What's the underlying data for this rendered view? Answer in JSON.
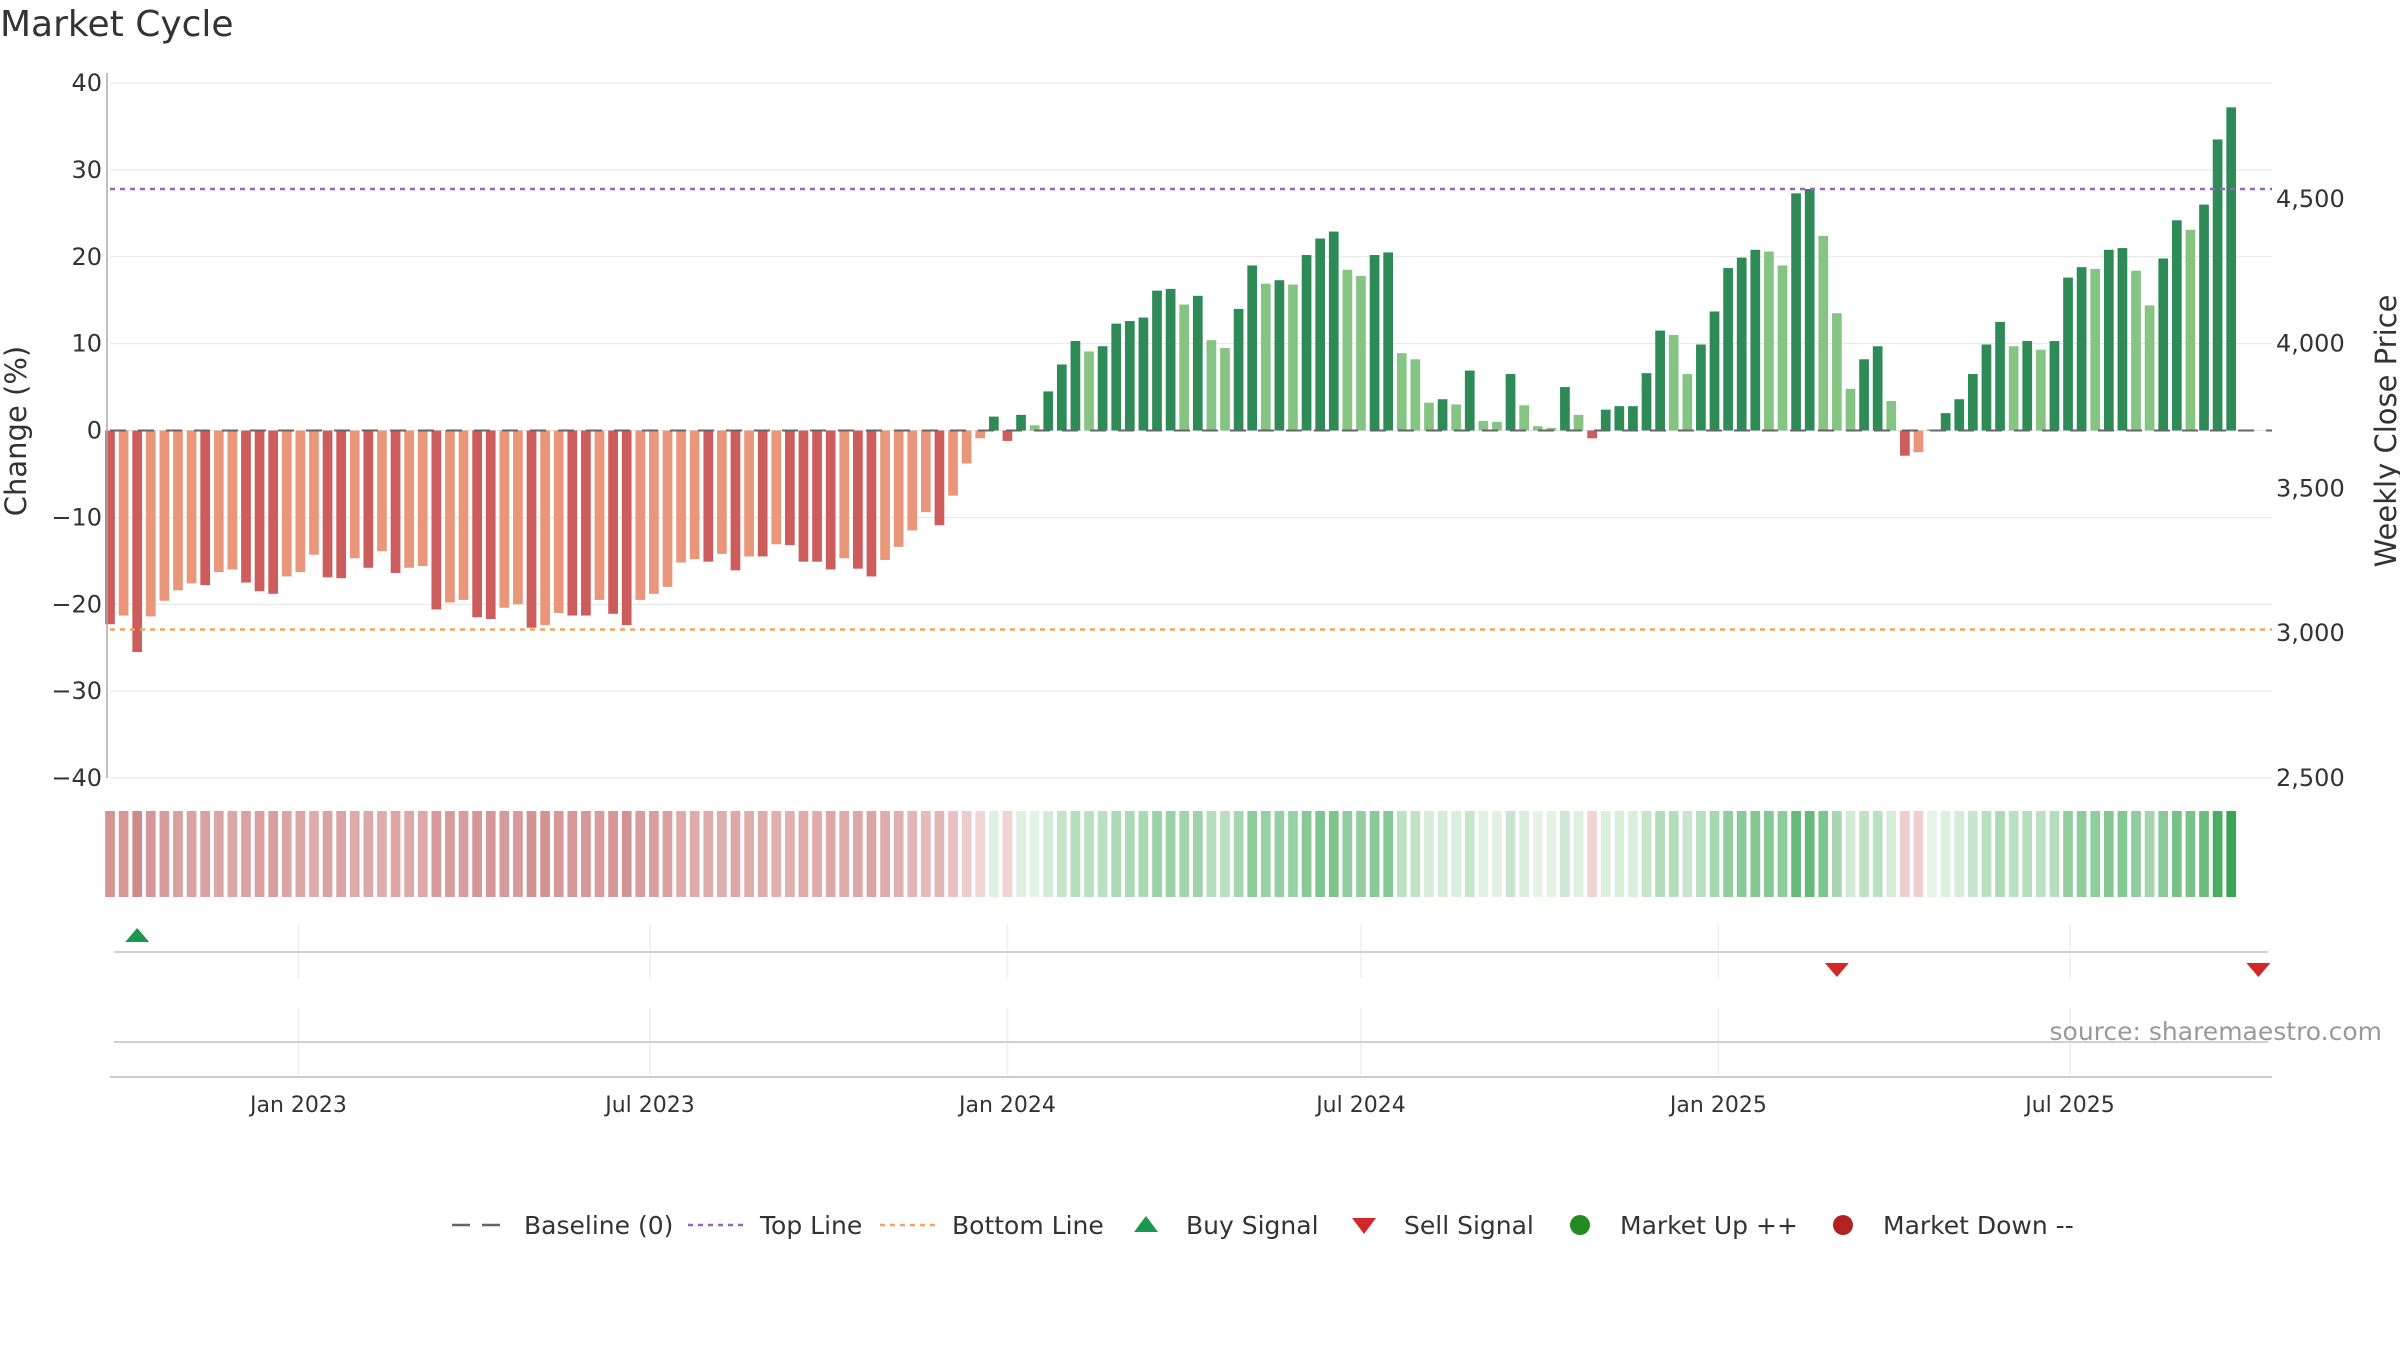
{
  "chart_data": {
    "type": "bar",
    "title": "Market Cycle",
    "ylabel": "Change (%)",
    "y2label": "Weekly Close Price",
    "ylim": [
      -40,
      40
    ],
    "y2lim": [
      2500,
      4900
    ],
    "yticks": [
      40,
      30,
      20,
      10,
      0,
      -10,
      -20,
      -30,
      -40
    ],
    "ytick_labels": [
      "40",
      "30",
      "20",
      "10",
      "0",
      "−10",
      "−20",
      "−30",
      "−40"
    ],
    "y2ticks": [
      4500,
      4000,
      3500,
      3000,
      2500
    ],
    "y2tick_labels": [
      "4,500",
      "4,000",
      "3,500",
      "3,000",
      "2,500"
    ],
    "x_start": "2022-09-26",
    "x_end": "2025-10-13",
    "xticks": [
      "2023-01-01",
      "2023-07-01",
      "2024-01-01",
      "2024-07-01",
      "2025-01-01",
      "2025-07-01"
    ],
    "xtick_labels": [
      "Jan 2023",
      "Jul 2023",
      "Jan 2024",
      "Jul 2024",
      "Jan 2025",
      "Jul 2025"
    ],
    "top_line": 27.8,
    "bottom_line": -22.9,
    "grid": true,
    "legend_position": "bottom",
    "bar_width_days": 5,
    "values": [
      -22.3,
      -21.3,
      -25.5,
      -21.4,
      -19.6,
      -18.4,
      -17.6,
      -17.8,
      -16.3,
      -16.0,
      -17.5,
      -18.5,
      -18.8,
      -16.8,
      -16.3,
      -14.3,
      -16.9,
      -17.0,
      -14.7,
      -15.8,
      -13.9,
      -16.4,
      -15.8,
      -15.6,
      -20.6,
      -19.8,
      -19.5,
      -21.5,
      -21.7,
      -20.4,
      -20.0,
      -22.7,
      -22.4,
      -21.0,
      -21.3,
      -21.3,
      -19.5,
      -21.1,
      -22.4,
      -19.5,
      -18.8,
      -18.0,
      -15.2,
      -14.8,
      -15.1,
      -14.2,
      -16.1,
      -14.5,
      -14.5,
      -13.1,
      -13.2,
      -15.1,
      -15.1,
      -16.0,
      -14.7,
      -15.9,
      -16.8,
      -14.9,
      -13.4,
      -11.5,
      -9.4,
      -10.9,
      -7.5,
      -3.8,
      -0.9,
      1.6,
      -1.2,
      1.8,
      0.6,
      4.5,
      7.6,
      10.3,
      9.1,
      9.7,
      12.3,
      12.6,
      13.0,
      16.1,
      16.3,
      14.5,
      15.5,
      10.4,
      9.5,
      14.0,
      19.0,
      16.9,
      17.3,
      16.8,
      20.2,
      22.1,
      22.9,
      18.5,
      17.8,
      20.2,
      20.5,
      8.9,
      8.2,
      3.2,
      3.6,
      3.0,
      6.9,
      1.1,
      1.0,
      6.5,
      2.9,
      0.5,
      0.3,
      5.0,
      1.8,
      -0.9,
      2.4,
      2.8,
      2.8,
      6.6,
      11.5,
      11.0,
      6.5,
      9.9,
      13.7,
      18.7,
      19.9,
      20.8,
      20.6,
      19.0,
      27.3,
      27.8,
      22.4,
      13.5,
      4.8,
      8.2,
      9.7,
      3.4,
      -2.9,
      -2.5,
      0.1,
      2.0,
      3.6,
      6.5,
      9.9,
      12.5,
      9.7,
      10.3,
      9.3,
      10.3,
      17.6,
      18.8,
      18.6,
      20.8,
      21.0,
      18.4,
      14.4,
      19.8,
      24.2,
      23.1,
      26.0,
      33.5,
      37.2
    ],
    "signals": [
      {
        "type": "buy",
        "date": "2022-10-10"
      },
      {
        "type": "sell",
        "date": "2025-03-03"
      },
      {
        "type": "sell",
        "date": "2025-10-06"
      }
    ],
    "series": [
      {
        "name": "Baseline (0)"
      },
      {
        "name": "Top Line"
      },
      {
        "name": "Bottom Line"
      },
      {
        "name": "Buy Signal"
      },
      {
        "name": "Sell Signal"
      },
      {
        "name": "Market Up ++"
      },
      {
        "name": "Market Down --"
      }
    ]
  },
  "source": "source: sharemaestro.com",
  "colors": {
    "strong_up": "#2e8b57",
    "weak_up": "#86c484",
    "strong_down": "#cd5c5c",
    "weak_down": "#e9967a",
    "top_line": "#9467bd",
    "bottom_line": "#f4a460",
    "buy": "#1a9850",
    "sell": "#d62728",
    "market_up": "#228b22",
    "market_down": "#b22222",
    "grid": "#e6e6e6"
  }
}
